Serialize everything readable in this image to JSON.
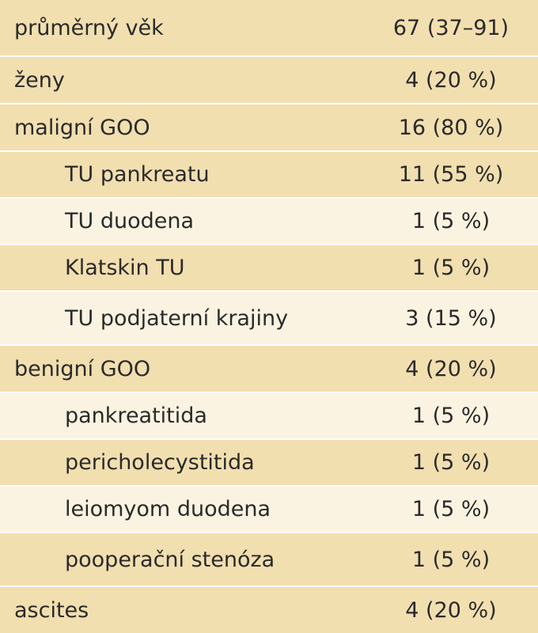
{
  "table": {
    "rows": [
      {
        "label": "průměrný věk",
        "value": "67 (37–91)"
      },
      {
        "label": "ženy",
        "value": "4 (20 %)"
      },
      {
        "label": "maligní GOO",
        "value": "16 (80 %)"
      },
      {
        "label": "TU pankreatu",
        "value": "11 (55 %)"
      },
      {
        "label": "TU duodena",
        "value": "1 (5 %)"
      },
      {
        "label": "Klatskin TU",
        "value": "1 (5 %)"
      },
      {
        "label": "TU podjaterní krajiny",
        "value": "3 (15 %)"
      },
      {
        "label": "benigní GOO",
        "value": "4 (20 %)"
      },
      {
        "label": "pankreatitida",
        "value": "1 (5 %)"
      },
      {
        "label": "pericholecystitida",
        "value": "1 (5 %)"
      },
      {
        "label": "leiomyom duodena",
        "value": "1 (5 %)"
      },
      {
        "label": "pooperační stenóza",
        "value": "1 (5 %)"
      },
      {
        "label": "ascites",
        "value": "4 (20 %)"
      }
    ]
  }
}
